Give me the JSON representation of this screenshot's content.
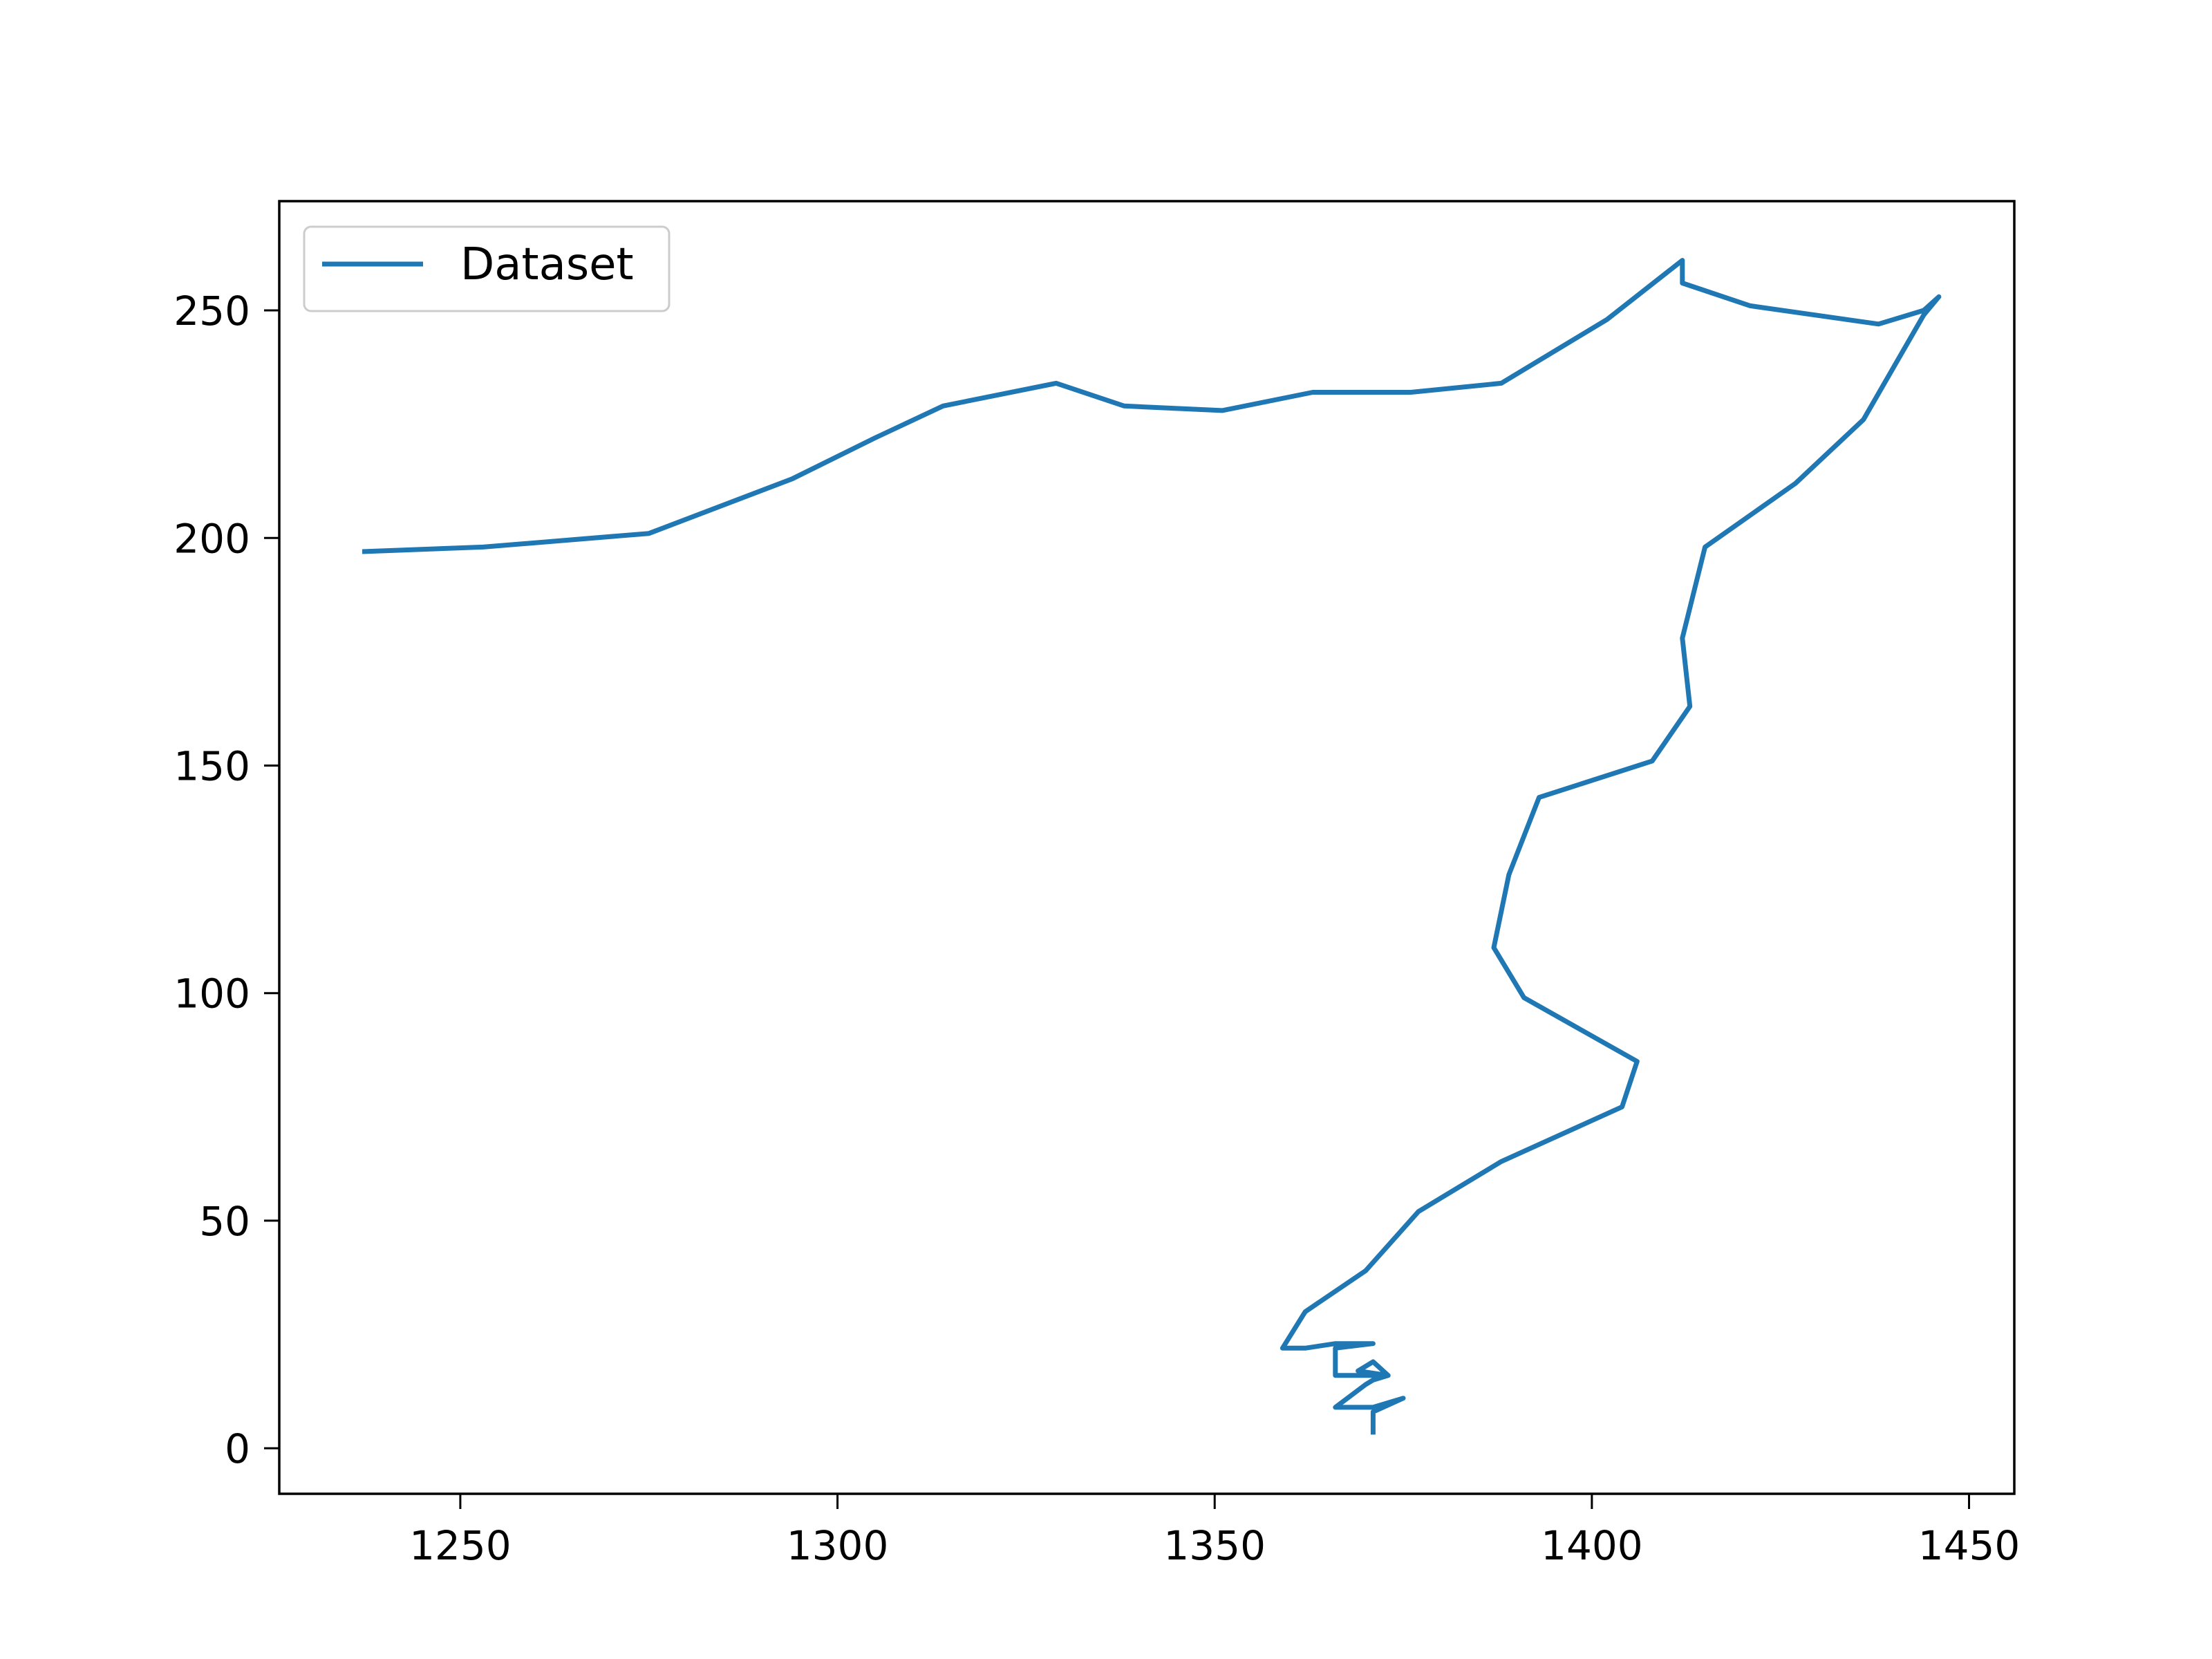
{
  "chart_data": {
    "type": "line",
    "title": "",
    "xlabel": "",
    "ylabel": "",
    "xlim": [
      1226,
      1456
    ],
    "ylim": [
      -10,
      274
    ],
    "x_ticks": [
      1250,
      1300,
      1350,
      1400,
      1450
    ],
    "y_ticks": [
      0,
      50,
      100,
      150,
      200,
      250
    ],
    "x_tick_labels": [
      "1250",
      "1300",
      "1350",
      "1400",
      "1450"
    ],
    "y_tick_labels": [
      "0",
      "50",
      "100",
      "150",
      "200",
      "250"
    ],
    "grid": false,
    "legend": {
      "position": "top-left",
      "entries": [
        "Dataset"
      ]
    },
    "series": [
      {
        "name": "Dataset",
        "color": "#1f77b4",
        "x": [
          1237,
          1253,
          1275,
          1294,
          1305,
          1314,
          1329,
          1338,
          1351,
          1363,
          1376,
          1388,
          1402,
          1412,
          1412,
          1421,
          1438,
          1444,
          1446,
          1444,
          1436,
          1427,
          1415,
          1412,
          1413,
          1408,
          1393,
          1389,
          1387,
          1391,
          1406,
          1404,
          1388,
          1377,
          1370,
          1362,
          1359,
          1362,
          1366,
          1371,
          1366,
          1366,
          1373,
          1371,
          1369,
          1373,
          1371,
          1370,
          1366,
          1366,
          1371,
          1375,
          1371,
          1371
        ],
        "y": [
          197,
          198,
          201,
          213,
          222,
          229,
          234,
          229,
          228,
          232,
          232,
          234,
          248,
          261,
          256,
          251,
          247,
          250,
          253,
          249,
          226,
          212,
          198,
          178,
          163,
          151,
          143,
          126,
          110,
          99,
          85,
          75,
          63,
          52,
          39,
          30,
          22,
          22,
          23,
          23,
          22,
          16,
          16,
          19,
          17,
          16,
          15,
          14,
          9,
          9,
          9,
          11,
          8,
          3
        ]
      }
    ]
  }
}
